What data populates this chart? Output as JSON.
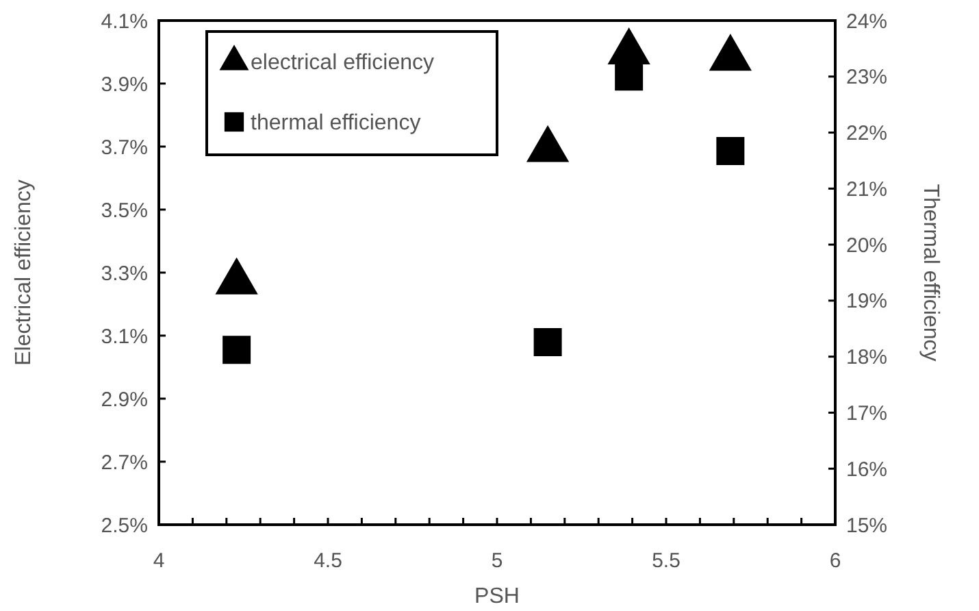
{
  "chart_data": {
    "type": "scatter",
    "xlabel": "PSH",
    "ylabel": "Electrical efficiency",
    "y2label": "Thermal efficiency",
    "x": [
      4.23,
      5.15,
      5.39,
      5.69
    ],
    "series": [
      {
        "name": "electrical efficiency",
        "color": "#000000",
        "marker": "triangle",
        "values": [
          3.27,
          3.69,
          4.0,
          3.98
        ]
      },
      {
        "name": "thermal efficiency",
        "color": "#000000",
        "marker": "square",
        "axis": "y2",
        "values": [
          18.12,
          18.26,
          23.0,
          21.67
        ]
      }
    ],
    "xlim": [
      4,
      6
    ],
    "xticks": [
      4,
      {
        "value": 4.1,
        "label": null
      },
      {
        "value": 4.2,
        "label": null
      },
      {
        "value": 4.3,
        "label": null
      },
      {
        "value": 4.4,
        "label": null
      },
      4.5,
      {
        "value": 4.6,
        "label": null
      },
      {
        "value": 4.7,
        "label": null
      },
      {
        "value": 4.8,
        "label": null
      },
      {
        "value": 4.9,
        "label": null
      },
      5,
      {
        "value": 5.1,
        "label": null
      },
      {
        "value": 5.2,
        "label": null
      },
      {
        "value": 5.3,
        "label": null
      },
      {
        "value": 5.4,
        "label": null
      },
      5.5,
      {
        "value": 5.6,
        "label": null
      },
      {
        "value": 5.7,
        "label": null
      },
      {
        "value": 5.8,
        "label": null
      },
      {
        "value": 5.9,
        "label": null
      },
      6
    ],
    "ylim": [
      2.5,
      4.1
    ],
    "yticks": [
      {
        "value": 2.5,
        "label": "2.5%"
      },
      {
        "value": 2.7,
        "label": "2.7%"
      },
      {
        "value": 2.9,
        "label": "2.9%"
      },
      {
        "value": 3.1,
        "label": "3.1%"
      },
      {
        "value": 3.3,
        "label": "3.3%"
      },
      {
        "value": 3.5,
        "label": "3.5%"
      },
      {
        "value": 3.7,
        "label": "3.7%"
      },
      {
        "value": 3.9,
        "label": "3.9%"
      },
      {
        "value": 4.1,
        "label": "4.1%"
      }
    ],
    "y2lim": [
      15,
      24
    ],
    "y2ticks": [
      {
        "value": 15,
        "label": "15%"
      },
      {
        "value": 16,
        "label": "16%"
      },
      {
        "value": 17,
        "label": "17%"
      },
      {
        "value": 18,
        "label": "18%"
      },
      {
        "value": 19,
        "label": "19%"
      },
      {
        "value": 20,
        "label": "20%"
      },
      {
        "value": 21,
        "label": "21%"
      },
      {
        "value": 22,
        "label": "22%"
      },
      {
        "value": 23,
        "label": "23%"
      },
      {
        "value": 24,
        "label": "24%"
      }
    ],
    "legend": "top left",
    "grid": false
  }
}
